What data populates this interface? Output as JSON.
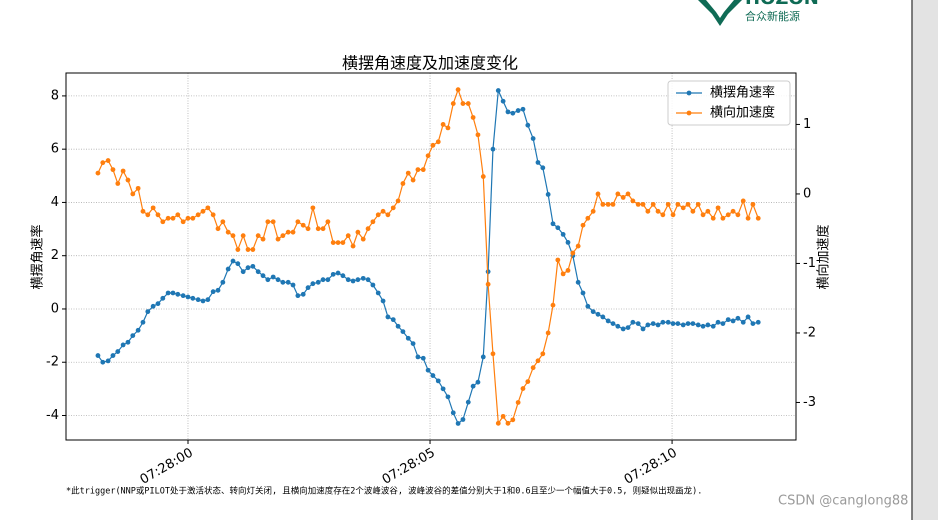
{
  "logo": {
    "brand": "HOZON",
    "name": "合众新能源"
  },
  "footnote": "*此trigger(NNP或PILOT处于激活状态、转向灯关闭, 且横向加速度存在2个波峰波谷, 波峰波谷的差值分别大于1和0.6且至少一个幅值大于0.5, 则疑似出现画龙).",
  "watermark": "CSDN @canglong88",
  "chart_data": {
    "type": "line",
    "title": "横摆角速度及加速度变化",
    "ylabel": "横摆角速率",
    "y2label": "横向加速度",
    "xlim": [
      -2.52,
      12.56
    ],
    "xticks": [
      {
        "value": 0,
        "label": "07:28:00"
      },
      {
        "value": 5,
        "label": "07:28:05"
      },
      {
        "value": 10,
        "label": "07:28:10"
      }
    ],
    "ylim": [
      -4.92,
      8.86
    ],
    "yticks": [
      -4,
      -2,
      0,
      2,
      4,
      6,
      8
    ],
    "y2lim": [
      -3.54,
      1.74
    ],
    "y2ticks": [
      -3,
      -2,
      -1,
      0,
      1
    ],
    "grid": true,
    "legend": "upper right",
    "x": [
      -1.86,
      -1.76,
      -1.65,
      -1.55,
      -1.45,
      -1.34,
      -1.24,
      -1.14,
      -1.03,
      -0.93,
      -0.83,
      -0.72,
      -0.62,
      -0.52,
      -0.41,
      -0.31,
      -0.21,
      -0.1,
      0.0,
      0.1,
      0.21,
      0.31,
      0.41,
      0.52,
      0.62,
      0.72,
      0.83,
      0.93,
      1.03,
      1.14,
      1.24,
      1.34,
      1.45,
      1.55,
      1.65,
      1.76,
      1.86,
      1.96,
      2.07,
      2.17,
      2.27,
      2.38,
      2.48,
      2.58,
      2.69,
      2.79,
      2.89,
      3.0,
      3.1,
      3.2,
      3.31,
      3.41,
      3.51,
      3.62,
      3.72,
      3.82,
      3.93,
      4.03,
      4.13,
      4.24,
      4.34,
      4.44,
      4.55,
      4.65,
      4.75,
      4.86,
      4.96,
      5.06,
      5.17,
      5.27,
      5.37,
      5.48,
      5.58,
      5.68,
      5.79,
      5.89,
      5.99,
      6.1,
      6.2,
      6.3,
      6.41,
      6.51,
      6.61,
      6.71,
      6.82,
      6.92,
      7.02,
      7.13,
      7.23,
      7.33,
      7.44,
      7.54,
      7.64,
      7.75,
      7.85,
      7.95,
      8.06,
      8.16,
      8.26,
      8.37,
      8.47,
      8.57,
      8.68,
      8.78,
      8.88,
      8.99,
      9.09,
      9.19,
      9.3,
      9.4,
      9.5,
      9.61,
      9.71,
      9.81,
      9.92,
      10.02,
      10.12,
      10.23,
      10.33,
      10.43,
      10.54,
      10.64,
      10.74,
      10.85,
      10.95,
      11.05,
      11.16,
      11.26,
      11.36,
      11.47,
      11.57,
      11.67,
      11.78
    ],
    "series": [
      {
        "name": "横摆角速率",
        "color": "#1f77b4",
        "values": [
          -1.75,
          -2.0,
          -1.95,
          -1.75,
          -1.6,
          -1.35,
          -1.25,
          -1.0,
          -0.8,
          -0.5,
          -0.1,
          0.1,
          0.2,
          0.4,
          0.6,
          0.6,
          0.55,
          0.5,
          0.45,
          0.4,
          0.35,
          0.3,
          0.35,
          0.65,
          0.7,
          1.0,
          1.5,
          1.8,
          1.7,
          1.4,
          1.55,
          1.6,
          1.4,
          1.25,
          1.1,
          1.2,
          1.1,
          1.0,
          1.0,
          0.9,
          0.5,
          0.55,
          0.8,
          0.95,
          1.0,
          1.1,
          1.1,
          1.3,
          1.35,
          1.25,
          1.1,
          1.05,
          1.1,
          1.15,
          1.1,
          0.9,
          0.6,
          0.3,
          -0.3,
          -0.4,
          -0.65,
          -0.85,
          -1.1,
          -1.3,
          -1.8,
          -1.85,
          -2.3,
          -2.5,
          -2.7,
          -3.0,
          -3.3,
          -3.9,
          -4.3,
          -4.15,
          -3.5,
          -2.9,
          -2.75,
          -1.8,
          1.4,
          6.0,
          8.2,
          7.8,
          7.4,
          7.35,
          7.45,
          7.5,
          6.9,
          6.4,
          5.5,
          5.3,
          4.3,
          3.2,
          3.05,
          2.8,
          2.5,
          2.0,
          1.0,
          0.6,
          0.1,
          -0.1,
          -0.2,
          -0.3,
          -0.45,
          -0.55,
          -0.65,
          -0.75,
          -0.7,
          -0.5,
          -0.55,
          -0.75,
          -0.6,
          -0.55,
          -0.6,
          -0.5,
          -0.5,
          -0.55,
          -0.55,
          -0.6,
          -0.55,
          -0.55,
          -0.6,
          -0.65,
          -0.6,
          -0.65,
          -0.5,
          -0.55,
          -0.4,
          -0.45,
          -0.35,
          -0.5,
          -0.3,
          -0.55,
          -0.5
        ]
      },
      {
        "name": "横向加速度",
        "color": "#ff7f0e",
        "axis": "y2",
        "values": [
          0.3,
          0.45,
          0.48,
          0.35,
          0.15,
          0.33,
          0.2,
          0.0,
          0.08,
          -0.25,
          -0.3,
          -0.2,
          -0.3,
          -0.4,
          -0.35,
          -0.35,
          -0.3,
          -0.4,
          -0.35,
          -0.35,
          -0.3,
          -0.25,
          -0.2,
          -0.3,
          -0.5,
          -0.4,
          -0.55,
          -0.6,
          -0.8,
          -0.6,
          -0.8,
          -0.8,
          -0.6,
          -0.65,
          -0.4,
          -0.4,
          -0.65,
          -0.6,
          -0.55,
          -0.55,
          -0.4,
          -0.45,
          -0.5,
          -0.2,
          -0.5,
          -0.5,
          -0.4,
          -0.7,
          -0.7,
          -0.7,
          -0.6,
          -0.75,
          -0.55,
          -0.65,
          -0.5,
          -0.4,
          -0.3,
          -0.25,
          -0.3,
          -0.2,
          -0.1,
          0.15,
          0.3,
          0.2,
          0.35,
          0.35,
          0.55,
          0.7,
          0.75,
          1.0,
          0.95,
          1.3,
          1.5,
          1.3,
          1.3,
          1.1,
          0.85,
          0.25,
          -1.3,
          -2.3,
          -3.3,
          -3.2,
          -3.3,
          -3.25,
          -3.0,
          -2.8,
          -2.7,
          -2.5,
          -2.4,
          -2.3,
          -2.0,
          -1.6,
          -0.95,
          -1.15,
          -1.1,
          -0.85,
          -0.75,
          -0.45,
          -0.35,
          -0.25,
          0.0,
          -0.15,
          -0.15,
          -0.15,
          0.0,
          -0.05,
          0.0,
          -0.1,
          -0.15,
          -0.15,
          -0.25,
          -0.15,
          -0.25,
          -0.3,
          -0.15,
          -0.3,
          -0.15,
          -0.2,
          -0.15,
          -0.25,
          -0.15,
          -0.3,
          -0.25,
          -0.35,
          -0.2,
          -0.35,
          -0.3,
          -0.25,
          -0.3,
          -0.1,
          -0.35,
          -0.15,
          -0.35
        ]
      }
    ]
  }
}
